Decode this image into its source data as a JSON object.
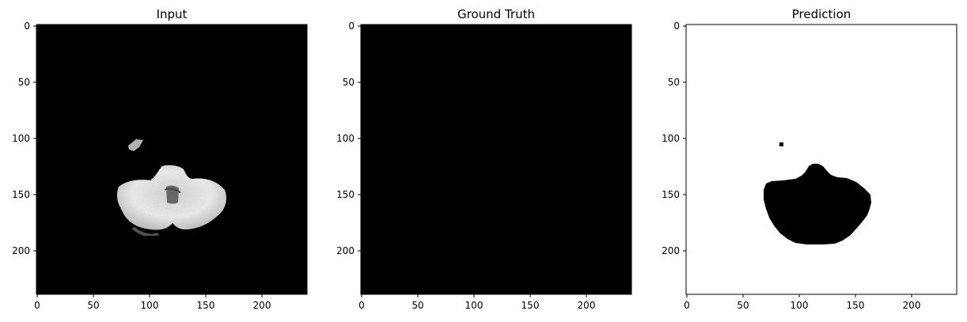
{
  "panels": [
    {
      "title": "Input",
      "type": "image",
      "colormap": "gray",
      "background": "#000000",
      "x_ticks": [
        "0",
        "50",
        "100",
        "150",
        "200"
      ],
      "y_ticks": [
        "0",
        "50",
        "100",
        "150",
        "200"
      ]
    },
    {
      "title": "Ground Truth",
      "type": "image",
      "colormap": "gray",
      "background": "#000000",
      "x_ticks": [
        "0",
        "50",
        "100",
        "150",
        "200"
      ],
      "y_ticks": [
        "0",
        "50",
        "100",
        "150",
        "200"
      ]
    },
    {
      "title": "Prediction",
      "type": "image",
      "colormap": "gray",
      "background": "#ffffff",
      "foreground": "#000000",
      "x_ticks": [
        "0",
        "50",
        "100",
        "150",
        "200"
      ],
      "y_ticks": [
        "0",
        "50",
        "100",
        "150",
        "200"
      ]
    }
  ]
}
